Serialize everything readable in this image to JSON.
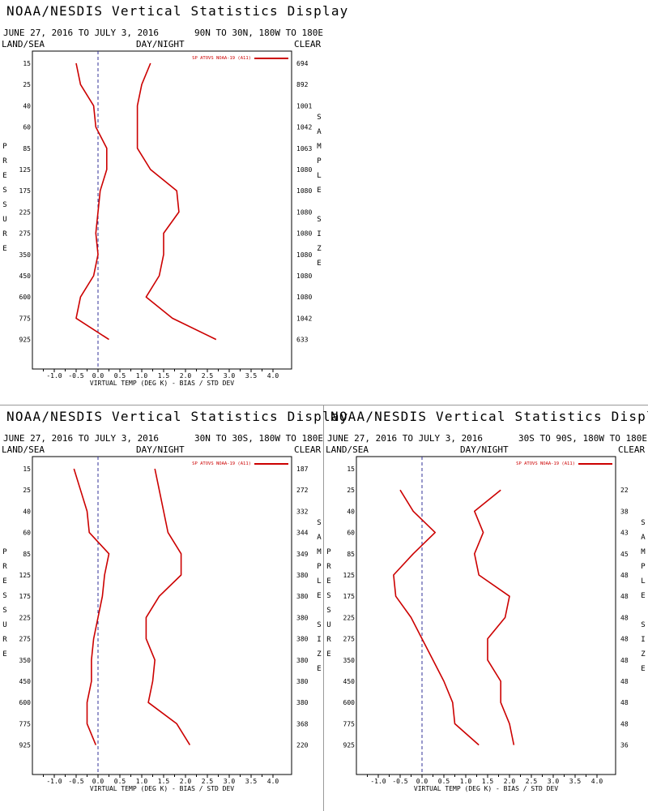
{
  "panels": [
    {
      "title": "NOAA/NESDIS Vertical Statistics Display",
      "date_range": "JUNE 27, 2016 TO JULY 3, 2016",
      "region": "90N TO 30N, 180W TO 180E",
      "land_sea": "LAND/SEA",
      "day_night": "DAY/NIGHT",
      "clear": "CLEAR",
      "left_label": "PRESSURE",
      "right_label": "SAMPLE SIZE",
      "sample_sizes": [
        "694",
        "892",
        "1001",
        "1042",
        "1063",
        "1080",
        "1080",
        "1080",
        "1080",
        "1080",
        "1080",
        "1080",
        "1042",
        "633"
      ]
    },
    {
      "title": "NOAA/NESDIS Vertical Statistics Display",
      "date_range": "JUNE 27, 2016 TO JULY 3, 2016",
      "region": "30N TO 30S, 180W TO 180E",
      "land_sea": "LAND/SEA",
      "day_night": "DAY/NIGHT",
      "clear": "CLEAR",
      "left_label": "PRESSURE",
      "right_label": "SAMPLE SIZE",
      "sample_sizes": [
        "187",
        "272",
        "332",
        "344",
        "349",
        "380",
        "380",
        "380",
        "380",
        "380",
        "380",
        "380",
        "368",
        "220"
      ]
    },
    {
      "title": "NOAA/NESDIS Vertical Statistics Display",
      "date_range": "JUNE 27, 2016 TO JULY 3, 2016",
      "region": "30S TO 90S, 180W TO 180E",
      "land_sea": "LAND/SEA",
      "day_night": "DAY/NIGHT",
      "clear": "CLEAR",
      "left_label": "PRESSURE",
      "right_label": "SAMPLE SIZE",
      "sample_sizes": [
        "",
        "22",
        "38",
        "43",
        "45",
        "48",
        "48",
        "48",
        "48",
        "48",
        "48",
        "48",
        "48",
        "36"
      ]
    }
  ],
  "colors": {
    "series": "#cc0000",
    "zero_line": "#333399",
    "axis": "#000000"
  },
  "chart_data": [
    {
      "type": "line",
      "xlabel": "VIRTUAL TEMP (DEG K) - BIAS / STD DEV",
      "ylabel": "PRESSURE",
      "legend": "SP ATOVS NOAA-19 (A11)",
      "legend_position": "top-right",
      "pressure_levels": [
        15,
        25,
        40,
        60,
        85,
        125,
        175,
        225,
        275,
        350,
        450,
        600,
        775,
        925
      ],
      "x_ticks": [
        "-1.0",
        "-0.5",
        "0.0",
        "0.5",
        "1.0",
        "1.5",
        "2.0",
        "2.5",
        "3.0",
        "3.5",
        "4.0"
      ],
      "xlim": [
        -1.5,
        4.5
      ],
      "series": [
        {
          "name": "BIAS",
          "values": [
            -0.5,
            -0.4,
            -0.1,
            -0.05,
            0.2,
            0.2,
            0.05,
            0.0,
            -0.05,
            0.0,
            -0.1,
            -0.4,
            -0.5,
            0.25
          ]
        },
        {
          "name": "STD DEV",
          "values": [
            1.2,
            1.0,
            0.9,
            0.9,
            0.9,
            1.2,
            1.8,
            1.85,
            1.5,
            1.5,
            1.4,
            1.1,
            1.7,
            2.7
          ]
        }
      ]
    },
    {
      "type": "line",
      "xlabel": "VIRTUAL TEMP (DEG K) - BIAS / STD DEV",
      "ylabel": "PRESSURE",
      "legend": "SP ATOVS NOAA-19 (A11)",
      "legend_position": "top-right",
      "pressure_levels": [
        15,
        25,
        40,
        60,
        85,
        125,
        175,
        225,
        275,
        350,
        450,
        600,
        775,
        925
      ],
      "x_ticks": [
        "-1.0",
        "-0.5",
        "0.0",
        "0.5",
        "1.0",
        "1.5",
        "2.0",
        "2.5",
        "3.0",
        "3.5",
        "4.0"
      ],
      "xlim": [
        -1.5,
        4.5
      ],
      "series": [
        {
          "name": "BIAS",
          "values": [
            -0.55,
            -0.4,
            -0.25,
            -0.2,
            0.25,
            0.15,
            0.1,
            0.0,
            -0.1,
            -0.15,
            -0.15,
            -0.25,
            -0.25,
            -0.05
          ]
        },
        {
          "name": "STD DEV",
          "values": [
            1.3,
            1.4,
            1.5,
            1.6,
            1.9,
            1.9,
            1.4,
            1.1,
            1.1,
            1.3,
            1.25,
            1.15,
            1.8,
            2.1
          ]
        }
      ]
    },
    {
      "type": "line",
      "xlabel": "VIRTUAL TEMP (DEG K) - BIAS / STD DEV",
      "ylabel": "PRESSURE",
      "legend": "SP ATOVS NOAA-19 (A11)",
      "legend_position": "top-right",
      "pressure_levels": [
        15,
        25,
        40,
        60,
        85,
        125,
        175,
        225,
        275,
        350,
        450,
        600,
        775,
        925
      ],
      "x_ticks": [
        "-1.0",
        "-0.5",
        "0.0",
        "0.5",
        "1.0",
        "1.5",
        "2.0",
        "2.5",
        "3.0",
        "3.5",
        "4.0"
      ],
      "xlim": [
        -1.5,
        4.5
      ],
      "series": [
        {
          "name": "BIAS",
          "values": [
            null,
            -0.5,
            -0.2,
            0.3,
            -0.2,
            -0.65,
            -0.6,
            -0.25,
            0.0,
            0.25,
            0.5,
            0.7,
            0.75,
            1.3
          ]
        },
        {
          "name": "STD DEV",
          "values": [
            null,
            1.8,
            1.2,
            1.4,
            1.2,
            1.3,
            2.0,
            1.9,
            1.5,
            1.5,
            1.8,
            1.8,
            2.0,
            2.1
          ]
        }
      ]
    }
  ]
}
